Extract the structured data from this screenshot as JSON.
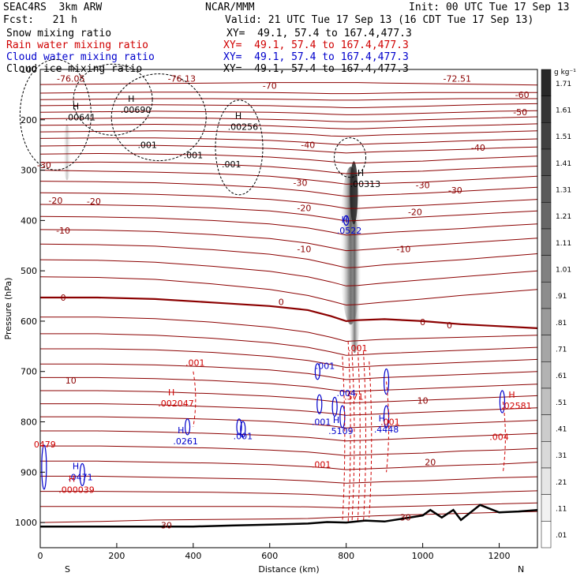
{
  "header": {
    "model": "SEAC4RS  3km ARW",
    "center": "NCAR/MMM",
    "init": "Init: 00 UTC Tue 17 Sep 13",
    "fcst": "Fcst:   21 h",
    "valid": "Valid: 21 UTC Tue 17 Sep 13 (16 CDT Tue 17 Sep 13)",
    "fields": [
      {
        "name": "Snow mixing ratio",
        "xy": "XY=  49.1, 57.4 to 167.4,477.3",
        "color": "#000000"
      },
      {
        "name": "Rain water mixing ratio",
        "xy": "XY=  49.1, 57.4 to 167.4,477.3",
        "color": "#d00000"
      },
      {
        "name": "Cloud water mixing ratio",
        "xy": "XY=  49.1, 57.4 to 167.4,477.3",
        "color": "#0000cc"
      },
      {
        "name": "Cloud ice mixing ratio",
        "xy": "XY=  49.1, 57.4 to 167.4,477.3",
        "color": "#000000"
      }
    ]
  },
  "chart_data": {
    "type": "cross-section",
    "xlabel": "Distance (km)",
    "ylabel": "Pressure (hPa)",
    "xlim": [
      0,
      1300
    ],
    "ylim": [
      1050,
      100
    ],
    "x_ticks": [
      0,
      200,
      400,
      600,
      800,
      1000,
      1200
    ],
    "y_ticks": [
      100,
      200,
      300,
      400,
      500,
      600,
      700,
      800,
      900,
      1000
    ],
    "x_end_labels": {
      "left": "S",
      "right": "N"
    },
    "colorbar": {
      "unit": "g kg⁻¹",
      "levels": [
        "1.71",
        "1.61",
        "1.51",
        "1.41",
        "1.31",
        "1.21",
        "1.11",
        "1.01",
        ".91",
        ".81",
        ".71",
        ".61",
        ".51",
        ".41",
        ".31",
        ".21",
        ".11",
        ".01"
      ]
    },
    "temperature_contours": {
      "color": "#8b0000",
      "levels": [
        -70,
        -60,
        -50,
        -40,
        -30,
        -20,
        -10,
        0,
        10,
        20,
        30
      ],
      "labels": [
        {
          "text": "-76.05",
          "x": 80,
          "p": 118
        },
        {
          "text": "-76.13",
          "x": 370,
          "p": 118
        },
        {
          "text": "-72.51",
          "x": 1090,
          "p": 118
        },
        {
          "text": "-70",
          "x": 600,
          "p": 132
        },
        {
          "text": "-60",
          "x": 1260,
          "p": 150
        },
        {
          "text": "-50",
          "x": 1255,
          "p": 185
        },
        {
          "text": "-40",
          "x": 1145,
          "p": 255
        },
        {
          "text": "-40",
          "x": 700,
          "p": 250
        },
        {
          "text": "-30",
          "x": 10,
          "p": 290
        },
        {
          "text": "-30",
          "x": 680,
          "p": 325
        },
        {
          "text": "-30",
          "x": 1000,
          "p": 330
        },
        {
          "text": "-30",
          "x": 1085,
          "p": 340
        },
        {
          "text": "-20",
          "x": 40,
          "p": 360
        },
        {
          "text": "-20",
          "x": 140,
          "p": 362
        },
        {
          "text": "-20",
          "x": 690,
          "p": 375
        },
        {
          "text": "-20",
          "x": 980,
          "p": 383
        },
        {
          "text": "-10",
          "x": 60,
          "p": 420
        },
        {
          "text": "-10",
          "x": 690,
          "p": 457
        },
        {
          "text": "-10",
          "x": 950,
          "p": 457
        },
        {
          "text": "0",
          "x": 60,
          "p": 553
        },
        {
          "text": "0",
          "x": 630,
          "p": 562
        },
        {
          "text": "0",
          "x": 1000,
          "p": 602
        },
        {
          "text": "0",
          "x": 1070,
          "p": 608
        },
        {
          "text": "10",
          "x": 80,
          "p": 718
        },
        {
          "text": "10",
          "x": 1000,
          "p": 758
        },
        {
          "text": "20",
          "x": 1020,
          "p": 880
        },
        {
          "text": "30",
          "x": 330,
          "p": 1005
        },
        {
          "text": "30",
          "x": 955,
          "p": 990
        }
      ]
    },
    "maxima": [
      {
        "text": ".00641",
        "x": 105,
        "p": 195,
        "color": "#000000"
      },
      {
        "text": ".00690",
        "x": 250,
        "p": 180,
        "color": "#000000"
      },
      {
        "text": ".00256",
        "x": 530,
        "p": 214,
        "color": "#000000"
      },
      {
        "text": ".00313",
        "x": 850,
        "p": 327,
        "color": "#000000"
      },
      {
        "text": ".0522",
        "x": 808,
        "p": 420,
        "color": "#0000cc"
      },
      {
        "text": ".002047",
        "x": 355,
        "p": 763,
        "color": "#d00000"
      },
      {
        "text": ".0261",
        "x": 380,
        "p": 838,
        "color": "#0000cc"
      },
      {
        "text": ".0471",
        "x": 105,
        "p": 910,
        "color": "#0000cc"
      },
      {
        "text": ".000039",
        "x": 95,
        "p": 935,
        "color": "#d00000"
      },
      {
        "text": ".5109",
        "x": 786,
        "p": 818,
        "color": "#0000cc"
      },
      {
        "text": ".4448",
        "x": 905,
        "p": 815,
        "color": "#0000cc"
      },
      {
        "text": ".02581",
        "x": 1245,
        "p": 768,
        "color": "#d00000"
      }
    ],
    "contour_values": [
      {
        "text": ".001",
        "x": 280,
        "p": 250,
        "color": "#000000"
      },
      {
        "text": ".001",
        "x": 400,
        "p": 270,
        "color": "#000000"
      },
      {
        "text": ".001",
        "x": 500,
        "p": 288,
        "color": "#000000"
      },
      {
        "text": ".001",
        "x": 405,
        "p": 682,
        "color": "#d00000"
      },
      {
        "text": ".001",
        "x": 830,
        "p": 653,
        "color": "#d00000"
      },
      {
        "text": ".001",
        "x": 745,
        "p": 689,
        "color": "#0000cc"
      },
      {
        "text": ".001",
        "x": 735,
        "p": 800,
        "color": "#0000cc"
      },
      {
        "text": ".001",
        "x": 530,
        "p": 828,
        "color": "#0000cc"
      },
      {
        "text": ".001",
        "x": 915,
        "p": 800,
        "color": "#d00000"
      },
      {
        "text": ".571",
        "x": 820,
        "p": 750,
        "color": "#d00000"
      },
      {
        "text": ".004",
        "x": 800,
        "p": 743,
        "color": "#0000cc"
      },
      {
        "text": ".001",
        "x": 735,
        "p": 885,
        "color": "#d00000"
      },
      {
        "text": ".004",
        "x": 1200,
        "p": 830,
        "color": "#d00000"
      },
      {
        "text": "0479",
        "x": 12,
        "p": 845,
        "color": "#d00000"
      }
    ]
  }
}
